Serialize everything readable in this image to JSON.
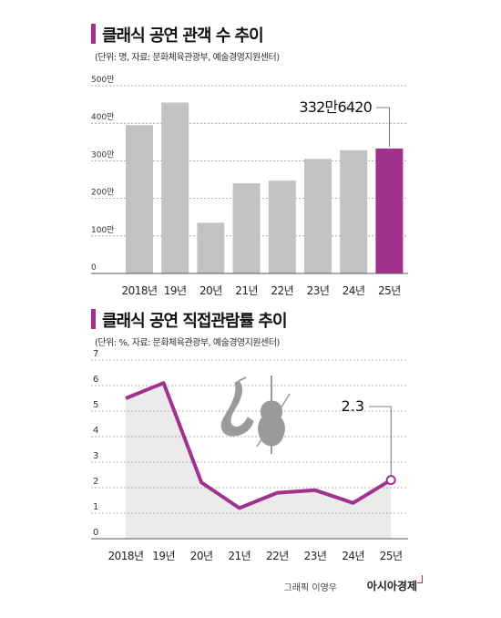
{
  "chart_data": [
    {
      "type": "bar",
      "title": "클래식 공연 관객 수 추이",
      "subtitle": "(단위: 명, 자료: 문화체육관광부, 예술경영지원센터)",
      "categories": [
        "2018년",
        "19년",
        "20년",
        "21년",
        "22년",
        "23년",
        "24년",
        "25년"
      ],
      "values": [
        3950000,
        4550000,
        1350000,
        2400000,
        2470000,
        3050000,
        3280000,
        3326420
      ],
      "yticks": [
        "0",
        "100만",
        "200만",
        "300만",
        "400만",
        "500만"
      ],
      "ylim": [
        0,
        5000000
      ],
      "annotation": "332만6420",
      "highlight_index": 7,
      "colors": {
        "bar": "#c2c2c2",
        "highlight": "#a0328e"
      },
      "grid": true
    },
    {
      "type": "area",
      "title": "클래식 공연 직접관람률 추이",
      "subtitle": "(단위: %, 자료: 문화체육관광부, 예술경영지원센터)",
      "categories": [
        "2018년",
        "19년",
        "20년",
        "21년",
        "22년",
        "23년",
        "24년",
        "25년"
      ],
      "values": [
        5.5,
        6.1,
        2.2,
        1.2,
        1.8,
        1.9,
        1.4,
        2.3
      ],
      "yticks": [
        "0",
        "1",
        "2",
        "3",
        "4",
        "5",
        "6",
        "7"
      ],
      "ylim": [
        0,
        7
      ],
      "annotation": "2.3",
      "colors": {
        "line": "#a0328e",
        "area": "#ebebeb",
        "icon": "#9a9a9a"
      },
      "grid": true
    }
  ],
  "footer": {
    "credit": "그래픽 이영우",
    "brand": "아시아경제"
  }
}
